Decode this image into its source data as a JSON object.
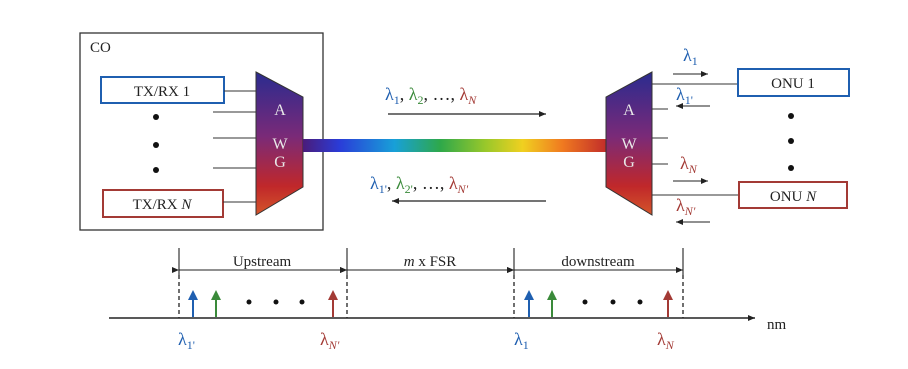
{
  "co": {
    "label": "CO"
  },
  "olt": {
    "tx_first": "TX/RX 1",
    "tx_last_prefix": "TX/RX ",
    "tx_last_var": "N"
  },
  "awg": {
    "letters": [
      "A",
      "W",
      "G"
    ]
  },
  "fiber": {
    "downstream_label": [
      "λ",
      "1",
      ", ",
      "λ",
      "2",
      ", …, ",
      "λ",
      "N"
    ],
    "upstream_label": [
      "λ",
      "1'",
      ", ",
      "λ",
      "2'",
      ", …, ",
      "λ",
      "N'"
    ]
  },
  "onu": {
    "first": "ONU 1",
    "last_prefix": "ONU ",
    "last_var": "N",
    "wavelengths": {
      "l1": [
        "λ",
        "1"
      ],
      "l1p": [
        "λ",
        "1'"
      ],
      "lN": [
        "λ",
        "N"
      ],
      "lNp": [
        "λ",
        "N'"
      ]
    }
  },
  "spectrum": {
    "upstream_label": "Upstream",
    "fsr_var": "m",
    "fsr_text": " x FSR",
    "downstream_label": "downstream",
    "axis_unit": "nm",
    "ticks": {
      "up_first": [
        "λ",
        "1'"
      ],
      "up_last": [
        "λ",
        "N'"
      ],
      "down_first": [
        "λ",
        "1"
      ],
      "down_last": [
        "λ",
        "N"
      ]
    }
  },
  "colors": {
    "blue": "#1f5fb0",
    "red": "#a33a35",
    "green": "#3a8a3a",
    "box_border": "#333333"
  }
}
